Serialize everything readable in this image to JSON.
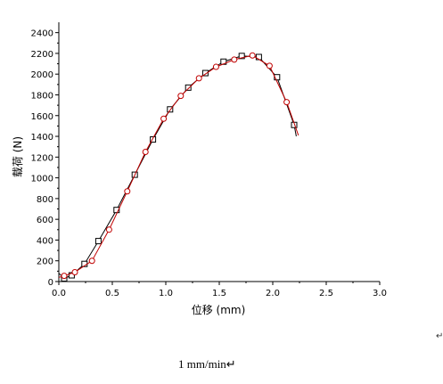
{
  "chart_data": {
    "type": "line",
    "title": "",
    "xlabel": "位移 (mm)",
    "ylabel": "载荷 (N)",
    "xlim": [
      0,
      3.0
    ],
    "ylim": [
      0,
      2500
    ],
    "xticks": [
      "0.0",
      "0.5",
      "1.0",
      "1.5",
      "2.0",
      "2.5",
      "3.0"
    ],
    "yticks": [
      "0",
      "200",
      "400",
      "600",
      "800",
      "1000",
      "1200",
      "1400",
      "1600",
      "1800",
      "2000",
      "2200",
      "2400"
    ],
    "grid": false,
    "series": [
      {
        "marker": "square",
        "color": "#000000",
        "x": [
          0.0,
          0.05,
          0.12,
          0.24,
          0.37,
          0.54,
          0.71,
          0.88,
          1.04,
          1.21,
          1.37,
          1.54,
          1.71,
          1.87,
          2.04,
          2.2,
          2.22
        ],
        "y": [
          80,
          30,
          60,
          170,
          390,
          690,
          1030,
          1370,
          1660,
          1870,
          2010,
          2120,
          2175,
          2165,
          1970,
          1510,
          1400
        ],
        "marker_points": [
          {
            "x": 0.05,
            "y": 30
          },
          {
            "x": 0.12,
            "y": 60
          },
          {
            "x": 0.24,
            "y": 170
          },
          {
            "x": 0.37,
            "y": 390
          },
          {
            "x": 0.54,
            "y": 690
          },
          {
            "x": 0.71,
            "y": 1030
          },
          {
            "x": 0.88,
            "y": 1370
          },
          {
            "x": 1.04,
            "y": 1660
          },
          {
            "x": 1.21,
            "y": 1870
          },
          {
            "x": 1.37,
            "y": 2010
          },
          {
            "x": 1.54,
            "y": 2120
          },
          {
            "x": 1.71,
            "y": 2175
          },
          {
            "x": 1.87,
            "y": 2165
          },
          {
            "x": 2.04,
            "y": 1970
          },
          {
            "x": 2.2,
            "y": 1510
          }
        ]
      },
      {
        "marker": "circle",
        "color": "#c00000",
        "x": [
          0.0,
          0.05,
          0.15,
          0.31,
          0.47,
          0.64,
          0.81,
          0.98,
          1.14,
          1.31,
          1.47,
          1.64,
          1.81,
          1.97,
          2.13,
          2.24
        ],
        "y": [
          40,
          55,
          90,
          200,
          500,
          870,
          1250,
          1570,
          1790,
          1960,
          2070,
          2140,
          2180,
          2080,
          1730,
          1410
        ],
        "marker_points": [
          {
            "x": 0.05,
            "y": 55
          },
          {
            "x": 0.15,
            "y": 90
          },
          {
            "x": 0.31,
            "y": 200
          },
          {
            "x": 0.47,
            "y": 500
          },
          {
            "x": 0.64,
            "y": 870
          },
          {
            "x": 0.81,
            "y": 1250
          },
          {
            "x": 0.98,
            "y": 1570
          },
          {
            "x": 1.14,
            "y": 1790
          },
          {
            "x": 1.31,
            "y": 1960
          },
          {
            "x": 1.47,
            "y": 2070
          },
          {
            "x": 1.64,
            "y": 2140
          },
          {
            "x": 1.81,
            "y": 2180
          },
          {
            "x": 1.97,
            "y": 2080
          },
          {
            "x": 2.13,
            "y": 1730
          }
        ]
      }
    ]
  },
  "caption": "1 mm/min↵",
  "stray_mark": "↵"
}
